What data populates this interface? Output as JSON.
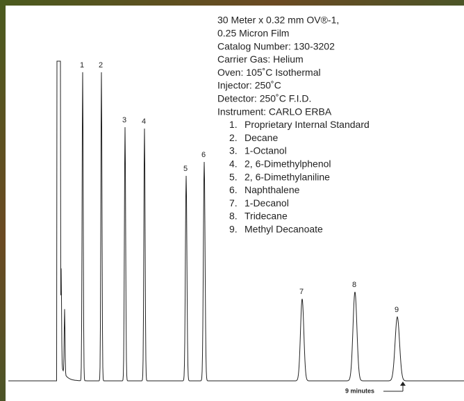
{
  "method": {
    "lines": [
      "30 Meter x 0.32 mm OV®-1,",
      "0.25 Micron Film",
      "Catalog Number: 130-3202",
      "Carrier Gas: Helium",
      "Oven: 105˚C Isothermal",
      "Injector: 250˚C",
      "Detector: 250˚C F.I.D.",
      "Instrument: CARLO ERBA"
    ]
  },
  "compounds": [
    {
      "number": "1.",
      "name": "Proprietary Internal Standard"
    },
    {
      "number": "2.",
      "name": "Decane"
    },
    {
      "number": "3.",
      "name": "1-Octanol"
    },
    {
      "number": "4.",
      "name": "2, 6-Dimethylphenol"
    },
    {
      "number": "5.",
      "name": "2, 6-Dimethylaniline"
    },
    {
      "number": "6.",
      "name": "Naphthalene"
    },
    {
      "number": "7.",
      "name": "1-Decanol"
    },
    {
      "number": "8.",
      "name": "Tridecane"
    },
    {
      "number": "9.",
      "name": "Methyl Decanoate"
    }
  ],
  "peaks": [
    "1",
    "2",
    "3",
    "4",
    "5",
    "6",
    "7",
    "8",
    "9"
  ],
  "annotation": "9 minutes"
}
